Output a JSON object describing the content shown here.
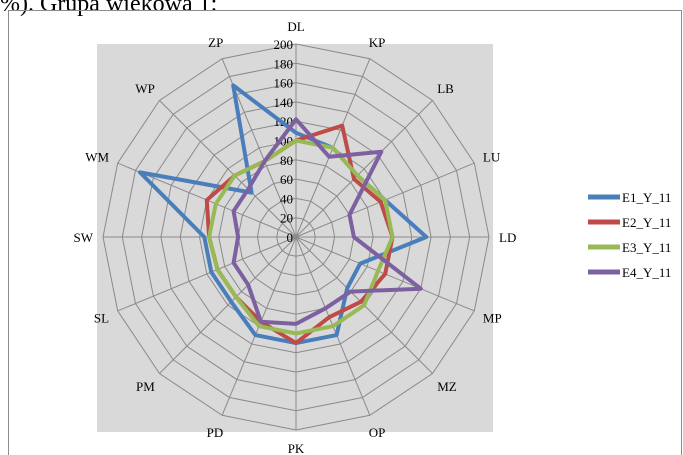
{
  "title_fragment": "%). Grupa wiekowa 1:",
  "chart_data": {
    "type": "radar",
    "axes": [
      "DL",
      "KP",
      "LB",
      "LU",
      "LD",
      "MP",
      "MZ",
      "OP",
      "PK",
      "PD",
      "PM",
      "SL",
      "SW",
      "WM",
      "WP",
      "ZP"
    ],
    "ticks": [
      0,
      20,
      40,
      60,
      80,
      100,
      120,
      140,
      160,
      180,
      200
    ],
    "rlim": [
      0,
      200
    ],
    "grid": true,
    "legend_position": "right",
    "series": [
      {
        "name": "E1_Y_11",
        "color": "#4a7ebb",
        "values": [
          108,
          100,
          90,
          100,
          135,
          72,
          75,
          110,
          110,
          110,
          95,
          95,
          95,
          175,
          65,
          170
        ]
      },
      {
        "name": "E2_Y_11",
        "color": "#be4b48",
        "values": [
          100,
          125,
          85,
          95,
          100,
          100,
          95,
          90,
          110,
          95,
          88,
          88,
          90,
          100,
          90,
          85
        ]
      },
      {
        "name": "E3_Y_11",
        "color": "#98b954",
        "values": [
          100,
          100,
          90,
          100,
          100,
          92,
          100,
          100,
          100,
          100,
          88,
          88,
          90,
          90,
          90,
          85
        ]
      },
      {
        "name": "E4_Y_11",
        "color": "#7d60a0",
        "values": [
          122,
          90,
          125,
          60,
          60,
          140,
          80,
          80,
          90,
          95,
          70,
          70,
          60,
          70,
          70,
          85
        ]
      }
    ]
  }
}
